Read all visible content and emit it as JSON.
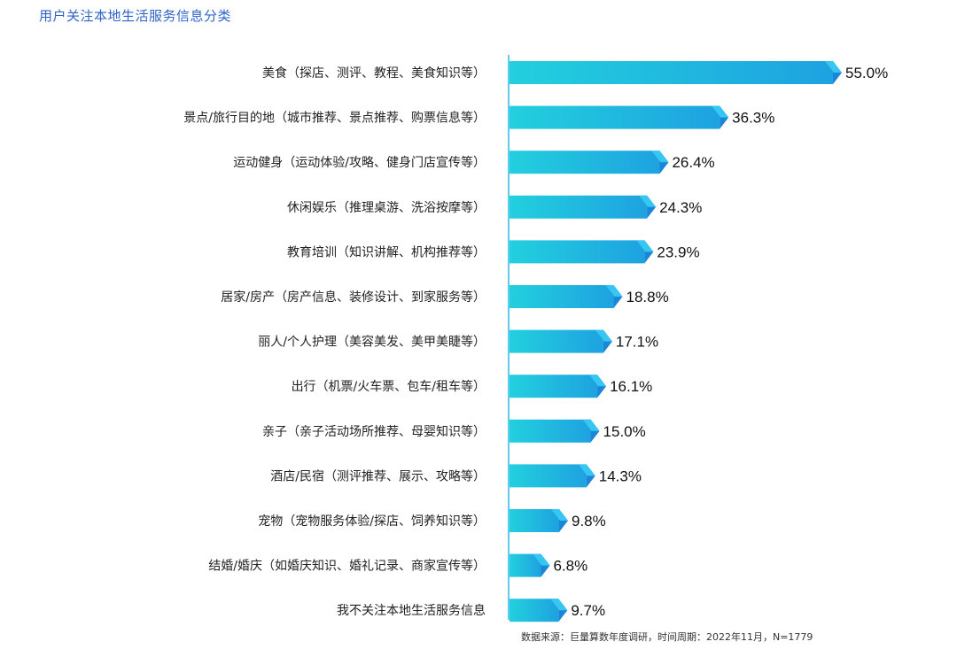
{
  "title": "用户关注本地生活服务信息分类",
  "footnote": "数据来源：巨量算数年度调研，时间周期：2022年11月，N=1779",
  "colors": {
    "title": "#2e63c8",
    "bar_start": "#22d0de",
    "bar_end": "#1ea2e0",
    "tip_dark": "#1b86d6",
    "tip_light": "#36c6f2",
    "axis": "#2fb8e6",
    "label": "#222222",
    "value": "#111111"
  },
  "chart_data": {
    "type": "bar",
    "orientation": "horizontal",
    "categories": [
      "美食（探店、测评、教程、美食知识等）",
      "景点/旅行目的地（城市推荐、景点推荐、购票信息等）",
      "运动健身（运动体验/攻略、健身门店宣传等）",
      "休闲娱乐（推理桌游、洗浴按摩等）",
      "教育培训（知识讲解、机构推荐等）",
      "居家/房产（房产信息、装修设计、到家服务等）",
      "丽人/个人护理（美容美发、美甲美睫等）",
      "出行（机票/火车票、包车/租车等）",
      "亲子（亲子活动场所推荐、母婴知识等）",
      "酒店/民宿（测评推荐、展示、攻略等）",
      "宠物（宠物服务体验/探店、饲养知识等）",
      "结婚/婚庆（如婚庆知识、婚礼记录、商家宣传等）",
      "我不关注本地生活服务信息"
    ],
    "values": [
      55.0,
      36.3,
      26.4,
      24.3,
      23.9,
      18.8,
      17.1,
      16.1,
      15.0,
      14.3,
      9.8,
      6.8,
      9.7
    ],
    "value_labels": [
      "55.0%",
      "36.3%",
      "26.4%",
      "24.3%",
      "23.9%",
      "18.8%",
      "17.1%",
      "16.1%",
      "15.0%",
      "14.3%",
      "9.8%",
      "6.8%",
      "9.7%"
    ],
    "xlim": [
      0,
      55
    ],
    "unit": "%",
    "grid": false,
    "legend": "none"
  }
}
